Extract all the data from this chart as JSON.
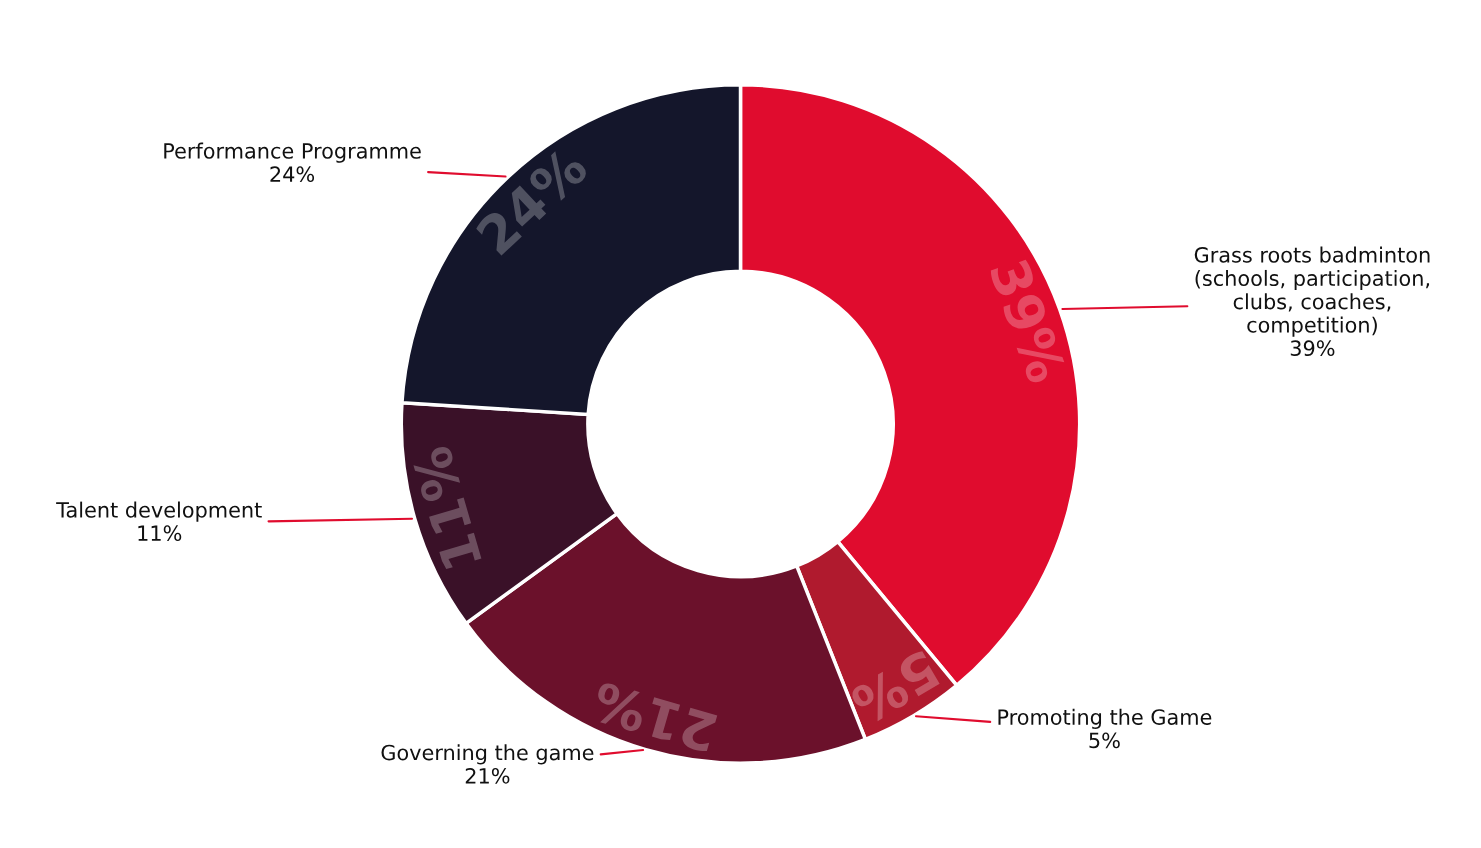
{
  "chart_data": {
    "type": "donut",
    "categories": [
      "Grass roots badminton\n(schools, participation,\nclubs, coaches,\ncompetition)",
      "Promoting the Game",
      "Governing the game",
      "Talent development",
      "Performance Programme"
    ],
    "values": [
      39,
      5,
      21,
      11,
      24
    ],
    "colors": [
      "#e00c2e",
      "#b01a2e",
      "#6b112b",
      "#3a1128",
      "#14162b"
    ],
    "value_labels": [
      "39%",
      "5%",
      "21%",
      "11%",
      "24%"
    ],
    "legend": false
  }
}
